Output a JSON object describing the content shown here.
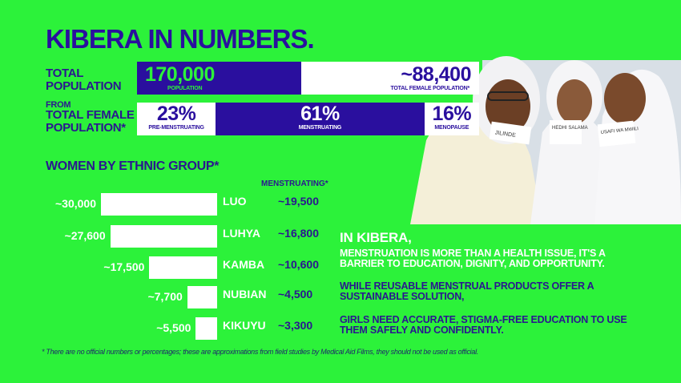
{
  "title": "KIBERA IN NUMBERS.",
  "population": {
    "label": "TOTAL POPULATION",
    "total": "170,000",
    "total_caption": "POPULATION",
    "female": "~88,400",
    "female_caption": "TOTAL FEMALE POPULATION*"
  },
  "female_breakdown": {
    "label_from": "FROM",
    "label": "TOTAL FEMALE POPULATION*",
    "segments": [
      {
        "value": "23%",
        "caption": "PRE-MENSTRUATING",
        "share": 23
      },
      {
        "value": "61%",
        "caption": "MENSTRUATING",
        "share": 61
      },
      {
        "value": "16%",
        "caption": "MENOPAUSE",
        "share": 16
      }
    ]
  },
  "colors": {
    "background": "#2cf23a",
    "accent": "#2a0f9e",
    "text": "#2a178f"
  },
  "chart_data": {
    "type": "bar",
    "title": "WOMEN BY ETHNIC GROUP*",
    "menstruating_header": "MENSTRUATING*",
    "categories": [
      "LUO",
      "LUHYA",
      "KAMBA",
      "NUBIAN",
      "KIKUYU"
    ],
    "values": [
      30000,
      27600,
      17500,
      7700,
      5500
    ],
    "value_labels": [
      "~30,000",
      "~27,600",
      "~17,500",
      "~7,700",
      "~5,500"
    ],
    "menstruating": [
      19500,
      16800,
      10600,
      4500,
      3300
    ],
    "menstruating_labels": [
      "~19,500",
      "~16,800",
      "~10,600",
      "~4,500",
      "~3,300"
    ],
    "orientation": "horizontal",
    "xlim": [
      0,
      30000
    ]
  },
  "message": {
    "heading": "IN KIBERA,",
    "line1": "MENSTRUATION IS MORE THAN A HEALTH ISSUE, IT'S A BARRIER TO EDUCATION, DIGNITY, AND OPPORTUNITY.",
    "line2": "WHILE REUSABLE MENSTRUAL PRODUCTS OFFER A SUSTAINABLE SOLUTION,",
    "line3": "GIRLS NEED ACCURATE, STIGMA-FREE EDUCATION TO USE THEM SAFELY AND CONFIDENTLY."
  },
  "footnote": "* There are no official numbers or percentages; these are approximations from field studies by Medical Aid Films, they should not be used as official.",
  "photo": {
    "cards": [
      "JILINDE",
      "HEDHI SALAMA",
      "USAFI WA MWILI"
    ]
  }
}
